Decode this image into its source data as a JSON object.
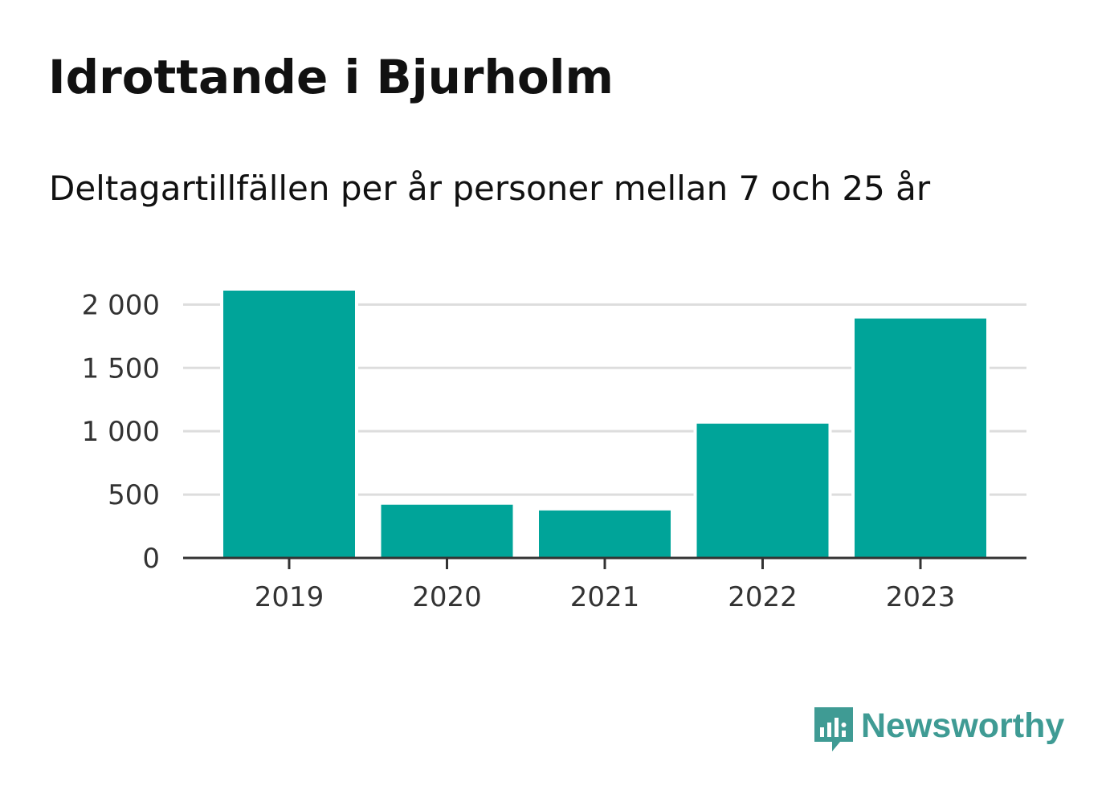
{
  "header": {
    "title": "Idrottande i Bjurholm",
    "subtitle": "Deltagartillfällen per år personer mellan 7 och 25 år"
  },
  "branding": {
    "logo_text": "Newsworthy",
    "logo_color": "#3f9b94"
  },
  "chart_data": {
    "type": "bar",
    "title": "Idrottande i Bjurholm",
    "subtitle": "Deltagartillfällen per år personer mellan 7 och 25 år",
    "categories": [
      "2019",
      "2020",
      "2021",
      "2022",
      "2023"
    ],
    "values": [
      2110,
      420,
      375,
      1060,
      1890
    ],
    "yticks": [
      0,
      500,
      1000,
      1500,
      2000
    ],
    "ytick_labels": [
      "0",
      "500",
      "1 000",
      "1 500",
      "2 000"
    ],
    "ylim": [
      0,
      2110
    ],
    "xlabel": "",
    "ylabel": "",
    "grid": true,
    "bar_color": "#00a499",
    "grid_color": "#dddddd",
    "axis_color": "#333333"
  }
}
